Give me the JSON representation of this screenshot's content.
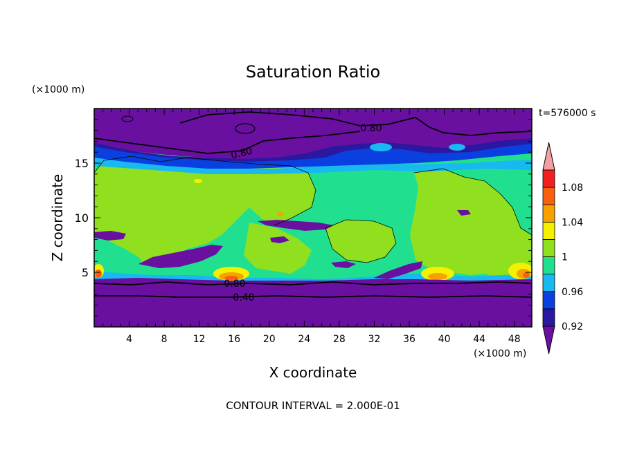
{
  "chart_data": {
    "type": "contour",
    "title": "Saturation Ratio",
    "xlabel": "X coordinate",
    "ylabel": "Z coordinate",
    "x_unit_label": "(×1000 m)",
    "y_unit_label": "(×1000 m)",
    "time_label": "t=576000 s",
    "footer": "CONTOUR INTERVAL = 2.000E-01",
    "xlim": [
      0,
      50
    ],
    "ylim": [
      0,
      20
    ],
    "x_ticks": [
      "4",
      "8",
      "12",
      "16",
      "20",
      "24",
      "28",
      "32",
      "36",
      "40",
      "44",
      "48"
    ],
    "y_ticks": [
      "5",
      "10",
      "15"
    ],
    "contour_labels": [
      {
        "text": "0.80",
        "x": 31.0,
        "y": 18.0
      },
      {
        "text": "0.80",
        "x": 17.0,
        "y": 15.5
      },
      {
        "text": "0.80",
        "x": 16.0,
        "y": 4.0
      },
      {
        "text": "0.40",
        "x": 17.0,
        "y": 2.7
      }
    ],
    "colorbar": {
      "levels": [
        0.92,
        0.94,
        0.96,
        0.98,
        1.0,
        1.02,
        1.04,
        1.06,
        1.08,
        1.1
      ],
      "tick_labels": [
        "1.08",
        "1.04",
        "1",
        "0.96",
        "0.92"
      ],
      "colors": [
        "#6a10a0",
        "#2a18a0",
        "#0a40e0",
        "#18b8f0",
        "#20e090",
        "#90e020",
        "#f4f000",
        "#f8a000",
        "#f86010",
        "#f02020",
        "#f4a0a0"
      ]
    }
  }
}
